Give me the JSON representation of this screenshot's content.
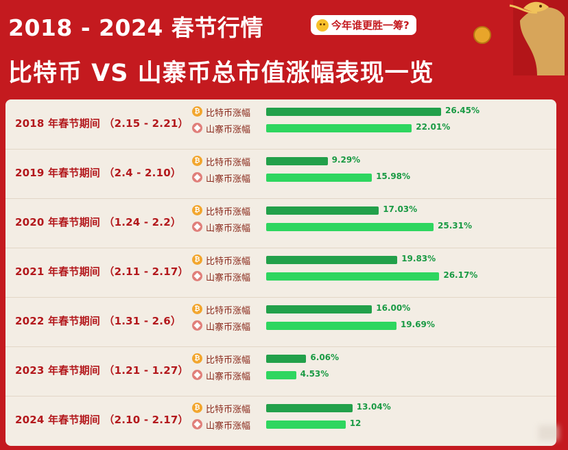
{
  "header": {
    "title_line1": "2018 - 2024 春节行情",
    "badge": "今年谁更胜一筹?",
    "title_line2": "比特币 VS 山寨币总市值涨幅表现一览"
  },
  "colors": {
    "background": "#c41a1f",
    "card": "#f3ede4",
    "label": "#b3181c",
    "btc_bar": "#22a04a",
    "alt_bar": "#2ed65f",
    "value_text": "#1a9a44"
  },
  "chart_data": {
    "type": "bar",
    "orientation": "horizontal",
    "categories": [
      "2018 年春节期间 （2.15 - 2.21）",
      "2019 年春节期间 （2.4 - 2.10）",
      "2020 年春节期间 （1.24 - 2.2）",
      "2021 年春节期间 （2.11 - 2.17）",
      "2022 年春节期间 （1.31 - 2.6）",
      "2023 年春节期间 （1.21 - 1.27）",
      "2024 年春节期间 （2.10 - 2.17）"
    ],
    "series": [
      {
        "name": "比特币涨幅",
        "icon": "bitcoin-icon",
        "values": [
          26.45,
          9.29,
          17.03,
          19.83,
          16.0,
          6.06,
          13.04
        ],
        "labels": [
          "26.45%",
          "9.29%",
          "17.03%",
          "19.83%",
          "16.00%",
          "6.06%",
          "13.04%"
        ]
      },
      {
        "name": "山寨币涨幅",
        "icon": "altcoin-icon",
        "values": [
          22.01,
          15.98,
          25.31,
          26.17,
          19.69,
          4.53,
          12.0
        ],
        "labels": [
          "22.01%",
          "15.98%",
          "25.31%",
          "26.17%",
          "19.69%",
          "4.53%",
          "12"
        ]
      }
    ],
    "xlim": [
      0,
      28
    ],
    "grid": false,
    "legend": "per-row"
  }
}
